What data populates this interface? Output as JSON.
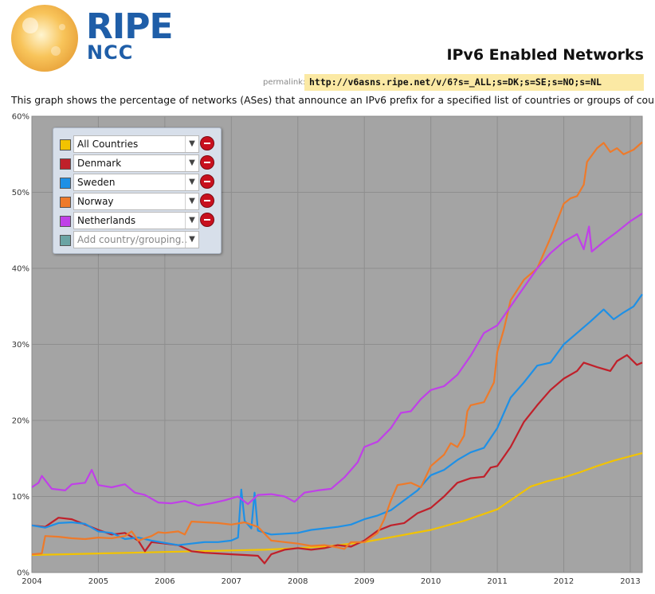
{
  "logo": {
    "line1": "RIPE",
    "line2": "NCC"
  },
  "page_title": "IPv6 Enabled Networks",
  "permalink": {
    "label": "permalink:",
    "url": "http://v6asns.ripe.net/v/6?s=_ALL;s=DK;s=SE;s=NO;s=NL"
  },
  "description": "This graph shows the percentage of networks (ASes) that announce an IPv6 prefix for a specified list of countries or groups of countries",
  "legend": {
    "entries": [
      {
        "label": "All Countries",
        "color": "#f2c300"
      },
      {
        "label": "Denmark",
        "color": "#c0202a"
      },
      {
        "label": "Sweden",
        "color": "#1e90e6"
      },
      {
        "label": "Norway",
        "color": "#ee7a2a"
      },
      {
        "label": "Netherlands",
        "color": "#c040e8"
      }
    ],
    "add_placeholder": "Add country/grouping..",
    "add_color": "#6aa4a4"
  },
  "chart_data": {
    "type": "line",
    "title": "",
    "xlabel": "",
    "ylabel": "",
    "xlim": [
      2004.0,
      2013.18
    ],
    "ylim": [
      0,
      60
    ],
    "x_ticks": [
      "2004",
      "2005",
      "2006",
      "2007",
      "2008",
      "2009",
      "2010",
      "2011",
      "2012",
      "2013"
    ],
    "y_ticks": [
      "0%",
      "10%",
      "20%",
      "30%",
      "40%",
      "50%",
      "60%"
    ],
    "grid": true,
    "legend_position": "top-left",
    "series": [
      {
        "name": "All Countries",
        "color": "#f2c300",
        "points": [
          [
            2004.0,
            2.3
          ],
          [
            2004.5,
            2.4
          ],
          [
            2005.0,
            2.5
          ],
          [
            2005.5,
            2.6
          ],
          [
            2006.0,
            2.7
          ],
          [
            2006.5,
            2.8
          ],
          [
            2007.0,
            2.9
          ],
          [
            2007.5,
            3.0
          ],
          [
            2008.0,
            3.2
          ],
          [
            2008.5,
            3.5
          ],
          [
            2009.0,
            4.0
          ],
          [
            2009.5,
            4.8
          ],
          [
            2010.0,
            5.6
          ],
          [
            2010.5,
            6.8
          ],
          [
            2011.0,
            8.3
          ],
          [
            2011.25,
            9.8
          ],
          [
            2011.5,
            11.3
          ],
          [
            2011.75,
            12.0
          ],
          [
            2012.0,
            12.5
          ],
          [
            2012.25,
            13.2
          ],
          [
            2012.5,
            14.0
          ],
          [
            2012.75,
            14.7
          ],
          [
            2013.0,
            15.3
          ],
          [
            2013.18,
            15.7
          ]
        ]
      },
      {
        "name": "Denmark",
        "color": "#c0202a",
        "points": [
          [
            2004.0,
            6.2
          ],
          [
            2004.2,
            6.0
          ],
          [
            2004.4,
            7.2
          ],
          [
            2004.6,
            7.0
          ],
          [
            2004.8,
            6.3
          ],
          [
            2005.0,
            5.6
          ],
          [
            2005.2,
            5.0
          ],
          [
            2005.4,
            5.2
          ],
          [
            2005.6,
            4.2
          ],
          [
            2005.7,
            2.8
          ],
          [
            2005.8,
            4.0
          ],
          [
            2006.0,
            3.8
          ],
          [
            2006.2,
            3.6
          ],
          [
            2006.4,
            2.8
          ],
          [
            2006.6,
            2.6
          ],
          [
            2006.8,
            2.5
          ],
          [
            2007.0,
            2.4
          ],
          [
            2007.2,
            2.3
          ],
          [
            2007.4,
            2.2
          ],
          [
            2007.5,
            1.2
          ],
          [
            2007.6,
            2.4
          ],
          [
            2007.8,
            3.0
          ],
          [
            2008.0,
            3.2
          ],
          [
            2008.2,
            3.0
          ],
          [
            2008.4,
            3.2
          ],
          [
            2008.6,
            3.6
          ],
          [
            2008.8,
            3.4
          ],
          [
            2009.0,
            4.2
          ],
          [
            2009.2,
            5.5
          ],
          [
            2009.4,
            6.2
          ],
          [
            2009.6,
            6.5
          ],
          [
            2009.8,
            7.8
          ],
          [
            2010.0,
            8.5
          ],
          [
            2010.2,
            10.0
          ],
          [
            2010.4,
            11.8
          ],
          [
            2010.6,
            12.4
          ],
          [
            2010.8,
            12.6
          ],
          [
            2010.9,
            13.8
          ],
          [
            2011.0,
            14.0
          ],
          [
            2011.2,
            16.5
          ],
          [
            2011.4,
            19.8
          ],
          [
            2011.6,
            22.0
          ],
          [
            2011.8,
            24.0
          ],
          [
            2012.0,
            25.5
          ],
          [
            2012.2,
            26.5
          ],
          [
            2012.3,
            27.6
          ],
          [
            2012.5,
            27.0
          ],
          [
            2012.7,
            26.5
          ],
          [
            2012.8,
            27.8
          ],
          [
            2012.95,
            28.6
          ],
          [
            2013.1,
            27.3
          ],
          [
            2013.18,
            27.6
          ]
        ]
      },
      {
        "name": "Sweden",
        "color": "#1e90e6",
        "points": [
          [
            2004.0,
            6.2
          ],
          [
            2004.2,
            5.9
          ],
          [
            2004.4,
            6.5
          ],
          [
            2004.6,
            6.6
          ],
          [
            2004.8,
            6.4
          ],
          [
            2005.0,
            5.4
          ],
          [
            2005.2,
            5.2
          ],
          [
            2005.4,
            4.4
          ],
          [
            2005.6,
            4.6
          ],
          [
            2005.8,
            4.2
          ],
          [
            2006.0,
            3.9
          ],
          [
            2006.2,
            3.6
          ],
          [
            2006.4,
            3.8
          ],
          [
            2006.6,
            4.0
          ],
          [
            2006.8,
            4.0
          ],
          [
            2007.0,
            4.2
          ],
          [
            2007.1,
            4.6
          ],
          [
            2007.15,
            10.9
          ],
          [
            2007.2,
            6.8
          ],
          [
            2007.3,
            5.8
          ],
          [
            2007.35,
            10.5
          ],
          [
            2007.4,
            5.5
          ],
          [
            2007.6,
            5.0
          ],
          [
            2007.8,
            5.1
          ],
          [
            2008.0,
            5.2
          ],
          [
            2008.2,
            5.6
          ],
          [
            2008.4,
            5.8
          ],
          [
            2008.6,
            6.0
          ],
          [
            2008.8,
            6.3
          ],
          [
            2009.0,
            7.0
          ],
          [
            2009.2,
            7.5
          ],
          [
            2009.4,
            8.2
          ],
          [
            2009.6,
            9.5
          ],
          [
            2009.8,
            10.8
          ],
          [
            2010.0,
            12.8
          ],
          [
            2010.2,
            13.5
          ],
          [
            2010.4,
            14.8
          ],
          [
            2010.6,
            15.8
          ],
          [
            2010.8,
            16.4
          ],
          [
            2011.0,
            19.0
          ],
          [
            2011.2,
            23.0
          ],
          [
            2011.4,
            25.0
          ],
          [
            2011.6,
            27.2
          ],
          [
            2011.8,
            27.6
          ],
          [
            2012.0,
            30.0
          ],
          [
            2012.2,
            31.5
          ],
          [
            2012.4,
            33.0
          ],
          [
            2012.6,
            34.6
          ],
          [
            2012.75,
            33.3
          ],
          [
            2012.9,
            34.2
          ],
          [
            2013.05,
            35.0
          ],
          [
            2013.18,
            36.6
          ]
        ]
      },
      {
        "name": "Norway",
        "color": "#ee7a2a",
        "points": [
          [
            2004.0,
            2.4
          ],
          [
            2004.15,
            2.5
          ],
          [
            2004.2,
            4.8
          ],
          [
            2004.4,
            4.7
          ],
          [
            2004.6,
            4.5
          ],
          [
            2004.8,
            4.4
          ],
          [
            2005.0,
            4.6
          ],
          [
            2005.2,
            4.5
          ],
          [
            2005.4,
            4.8
          ],
          [
            2005.5,
            5.4
          ],
          [
            2005.6,
            4.2
          ],
          [
            2005.8,
            4.8
          ],
          [
            2005.9,
            5.3
          ],
          [
            2006.0,
            5.2
          ],
          [
            2006.2,
            5.4
          ],
          [
            2006.3,
            5.0
          ],
          [
            2006.4,
            6.7
          ],
          [
            2006.6,
            6.6
          ],
          [
            2006.8,
            6.5
          ],
          [
            2007.0,
            6.3
          ],
          [
            2007.2,
            6.6
          ],
          [
            2007.4,
            6.0
          ],
          [
            2007.6,
            4.2
          ],
          [
            2007.8,
            4.0
          ],
          [
            2008.0,
            3.8
          ],
          [
            2008.2,
            3.5
          ],
          [
            2008.4,
            3.6
          ],
          [
            2008.6,
            3.3
          ],
          [
            2008.7,
            3.1
          ],
          [
            2008.8,
            4.0
          ],
          [
            2009.0,
            4.0
          ],
          [
            2009.2,
            5.2
          ],
          [
            2009.3,
            7.0
          ],
          [
            2009.4,
            9.5
          ],
          [
            2009.5,
            11.5
          ],
          [
            2009.7,
            11.8
          ],
          [
            2009.85,
            11.2
          ],
          [
            2010.0,
            14.0
          ],
          [
            2010.2,
            15.5
          ],
          [
            2010.3,
            17.0
          ],
          [
            2010.4,
            16.5
          ],
          [
            2010.5,
            18.0
          ],
          [
            2010.55,
            21.2
          ],
          [
            2010.6,
            22.0
          ],
          [
            2010.8,
            22.4
          ],
          [
            2010.95,
            25.0
          ],
          [
            2011.0,
            29.0
          ],
          [
            2011.1,
            32.0
          ],
          [
            2011.2,
            35.8
          ],
          [
            2011.4,
            38.5
          ],
          [
            2011.6,
            40.0
          ],
          [
            2011.8,
            44.0
          ],
          [
            2012.0,
            48.5
          ],
          [
            2012.1,
            49.2
          ],
          [
            2012.2,
            49.5
          ],
          [
            2012.3,
            51.0
          ],
          [
            2012.35,
            54.0
          ],
          [
            2012.5,
            55.8
          ],
          [
            2012.6,
            56.5
          ],
          [
            2012.7,
            55.3
          ],
          [
            2012.8,
            55.8
          ],
          [
            2012.9,
            55.0
          ],
          [
            2013.05,
            55.6
          ],
          [
            2013.18,
            56.6
          ]
        ]
      },
      {
        "name": "Netherlands",
        "color": "#c040e8",
        "points": [
          [
            2004.0,
            11.2
          ],
          [
            2004.1,
            11.8
          ],
          [
            2004.15,
            12.7
          ],
          [
            2004.3,
            11.0
          ],
          [
            2004.5,
            10.8
          ],
          [
            2004.6,
            11.6
          ],
          [
            2004.8,
            11.8
          ],
          [
            2004.9,
            13.5
          ],
          [
            2005.0,
            11.5
          ],
          [
            2005.2,
            11.2
          ],
          [
            2005.4,
            11.6
          ],
          [
            2005.55,
            10.5
          ],
          [
            2005.7,
            10.2
          ],
          [
            2005.9,
            9.2
          ],
          [
            2006.1,
            9.1
          ],
          [
            2006.3,
            9.4
          ],
          [
            2006.5,
            8.8
          ],
          [
            2006.7,
            9.1
          ],
          [
            2006.9,
            9.5
          ],
          [
            2007.1,
            10.0
          ],
          [
            2007.25,
            9.0
          ],
          [
            2007.4,
            10.2
          ],
          [
            2007.6,
            10.3
          ],
          [
            2007.8,
            10.0
          ],
          [
            2007.95,
            9.3
          ],
          [
            2008.1,
            10.5
          ],
          [
            2008.3,
            10.8
          ],
          [
            2008.5,
            11.0
          ],
          [
            2008.7,
            12.5
          ],
          [
            2008.9,
            14.5
          ],
          [
            2009.0,
            16.5
          ],
          [
            2009.2,
            17.2
          ],
          [
            2009.4,
            19.0
          ],
          [
            2009.55,
            21.0
          ],
          [
            2009.7,
            21.2
          ],
          [
            2009.85,
            22.8
          ],
          [
            2010.0,
            24.0
          ],
          [
            2010.2,
            24.5
          ],
          [
            2010.4,
            26.0
          ],
          [
            2010.6,
            28.5
          ],
          [
            2010.8,
            31.5
          ],
          [
            2011.0,
            32.5
          ],
          [
            2011.2,
            35.0
          ],
          [
            2011.4,
            37.5
          ],
          [
            2011.6,
            40.0
          ],
          [
            2011.8,
            42.0
          ],
          [
            2012.0,
            43.5
          ],
          [
            2012.2,
            44.5
          ],
          [
            2012.3,
            42.5
          ],
          [
            2012.38,
            45.5
          ],
          [
            2012.42,
            42.2
          ],
          [
            2012.6,
            43.5
          ],
          [
            2012.8,
            44.8
          ],
          [
            2013.0,
            46.2
          ],
          [
            2013.18,
            47.2
          ]
        ]
      }
    ]
  }
}
